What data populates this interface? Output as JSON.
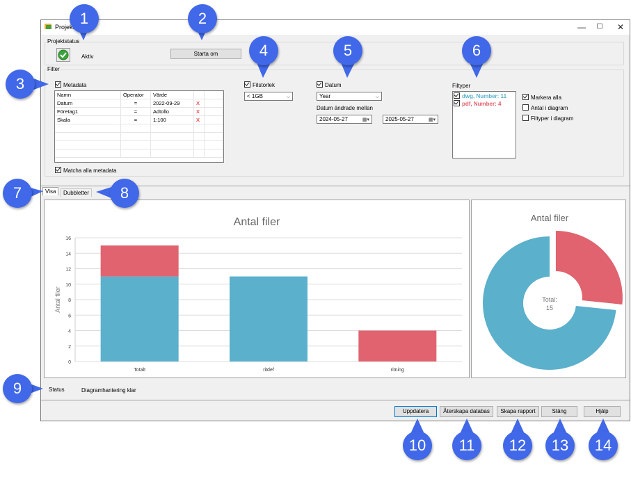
{
  "window": {
    "title": "Projektstatus",
    "controls": [
      "—",
      "☐",
      "✕"
    ]
  },
  "status_group": {
    "label": "Projektstatus",
    "state": "Aktiv",
    "restart_button": "Starta om"
  },
  "filter": {
    "label": "Filter",
    "metadata": {
      "label": "Metadata",
      "checked": true,
      "columns": [
        "Namn",
        "Operator",
        "Värde"
      ],
      "rows": [
        {
          "name": "Datum",
          "op": "=",
          "value": "2022-09-29",
          "del": "X"
        },
        {
          "name": "Företag1",
          "op": "=",
          "value": "Adtollo",
          "del": "X"
        },
        {
          "name": "Skala",
          "op": "=",
          "value": "1:100",
          "del": "X"
        }
      ],
      "match_all": "Matcha alla metadata"
    },
    "filesize": {
      "label": "Filstorlek",
      "checked": true,
      "value": "< 1GB"
    },
    "date": {
      "label": "Datum",
      "checked": true,
      "period": "Year",
      "range_label": "Datum ändrade mellan",
      "from": "2024-05-27",
      "to": "2025-05-27"
    },
    "filetypes": {
      "label": "Filtyper",
      "items": [
        {
          "label": "dwg, Number: 11",
          "color": "#5bb0cb",
          "checked": true
        },
        {
          "label": "pdf, Number: 4",
          "color": "#e0636f",
          "checked": true
        }
      ],
      "options": [
        {
          "label": "Markera alla",
          "checked": true
        },
        {
          "label": "Antal i diagram",
          "checked": false
        },
        {
          "label": "Filtyper i diagram",
          "checked": false
        }
      ]
    }
  },
  "tabs": [
    {
      "label": "Visa",
      "active": true
    },
    {
      "label": "Dubbletter",
      "active": false
    }
  ],
  "chart_data": [
    {
      "type": "bar",
      "title": "Antal filer",
      "ylabel": "Antal filer",
      "categories": [
        "Totalt",
        "ritdef",
        "ritning"
      ],
      "series": [
        {
          "name": "dwg",
          "color": "#5bb0cb",
          "values": [
            11,
            11,
            0
          ]
        },
        {
          "name": "pdf",
          "color": "#e0636f",
          "values": [
            4,
            0,
            4
          ]
        }
      ],
      "ylim": [
        0,
        16
      ],
      "yticks": [
        0,
        2,
        4,
        6,
        8,
        10,
        12,
        14,
        16
      ],
      "grid": true,
      "stacked": true
    },
    {
      "type": "pie",
      "title": "Antal filer",
      "center_label": "Total:",
      "center_value": "15",
      "slices": [
        {
          "name": "dwg",
          "value": 11,
          "color": "#5bb0cb"
        },
        {
          "name": "pdf",
          "value": 4,
          "color": "#e0636f",
          "exploded": true
        }
      ]
    }
  ],
  "status_bar": {
    "label": "Status",
    "text": "Diagramhantering klar"
  },
  "buttons": {
    "update": "Uppdatera",
    "rebuild": "Återskapa databas",
    "report": "Skapa rapport",
    "close": "Stäng",
    "help": "Hjälp"
  },
  "callouts": [
    "1",
    "2",
    "3",
    "4",
    "5",
    "6",
    "7",
    "8",
    "9",
    "10",
    "11",
    "12",
    "13",
    "14"
  ]
}
